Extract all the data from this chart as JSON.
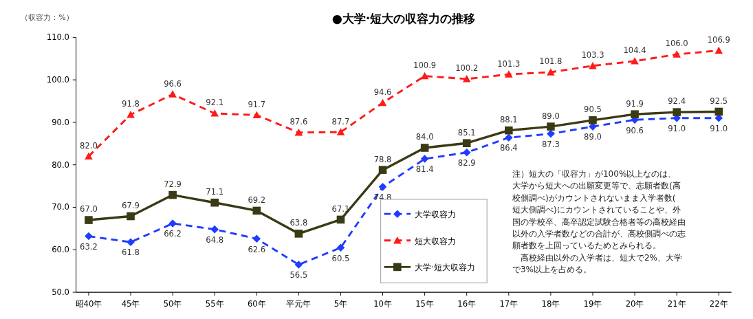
{
  "chart_data": {
    "type": "line",
    "title": "●大学·短大の収容力の推移",
    "ylabel": "（収容力：%）",
    "categories": [
      "昭40年",
      "45年",
      "50年",
      "55年",
      "60年",
      "平元年",
      "5年",
      "10年",
      "15年",
      "16年",
      "17年",
      "18年",
      "19年",
      "20年",
      "21年",
      "22年"
    ],
    "ylim": [
      50,
      110
    ],
    "yticks": [
      {
        "value": 50,
        "label": "50.0"
      },
      {
        "value": 60,
        "label": "60.0"
      },
      {
        "value": 70,
        "label": "70.0"
      },
      {
        "value": 80,
        "label": "80.0"
      },
      {
        "value": 90,
        "label": "90.0"
      },
      {
        "value": 100,
        "label": "100.0"
      },
      {
        "value": 110,
        "label": "110.0"
      }
    ],
    "grid": false,
    "legend": "bottom",
    "series": [
      {
        "name": "大学収容力",
        "color": "#1f3cff",
        "marker": "diamond",
        "line_style": "dashed",
        "values": [
          63.2,
          61.8,
          66.2,
          64.8,
          62.6,
          56.5,
          60.5,
          74.8,
          81.4,
          82.9,
          86.4,
          87.3,
          89.0,
          90.6,
          91.0,
          91.0
        ],
        "value_labels": [
          "63.2",
          "61.8",
          "66.2",
          "64.8",
          "62.6",
          "56.5",
          "60.5",
          "74.8",
          "81.4",
          "82.9",
          "86.4",
          "87.3",
          "89.0",
          "90.6",
          "91.0",
          "91.0"
        ]
      },
      {
        "name": "短大収容力",
        "color": "#ff1a1a",
        "marker": "triangle",
        "line_style": "dashed",
        "values": [
          82.0,
          91.8,
          96.6,
          92.1,
          91.7,
          87.6,
          87.7,
          94.6,
          100.9,
          100.2,
          101.3,
          101.8,
          103.3,
          104.4,
          106.0,
          106.9
        ],
        "value_labels": [
          "82.0",
          "91.8",
          "96.6",
          "92.1",
          "91.7",
          "87.6",
          "87.7",
          "94.6",
          "100.9",
          "100.2",
          "101.3",
          "101.8",
          "103.3",
          "104.4",
          "106.0",
          "106.9"
        ]
      },
      {
        "name": "大学·短大収容力",
        "color": "#3a3a14",
        "marker": "square",
        "line_style": "solid",
        "values": [
          67.0,
          67.9,
          72.9,
          71.1,
          69.2,
          63.8,
          67.1,
          78.8,
          84.0,
          85.1,
          88.1,
          89.0,
          90.5,
          91.9,
          92.4,
          92.5
        ],
        "value_labels": [
          "67.0",
          "67.9",
          "72.9",
          "71.1",
          "69.2",
          "63.8",
          "67.1",
          "78.8",
          "84.0",
          "85.1",
          "88.1",
          "89.0",
          "90.5",
          "91.9",
          "92.4",
          "92.5"
        ]
      }
    ],
    "annotations": [
      "注）短大の「収容力」が100%以上なのは、大学から短大への出願変更等で、志願者数(高校側調べ)がカウントされないまま入学者数(短大側調べ)にカウントされていることや、外国の学校卒、高卒認定試験合格者等の高校経由以外の入学者数などの合計が、高校側調べの志願者数を上回っているためとみられる。",
      "　高校経由以外の入学者は、短大で2%、大学で3%以上を占める。"
    ]
  }
}
